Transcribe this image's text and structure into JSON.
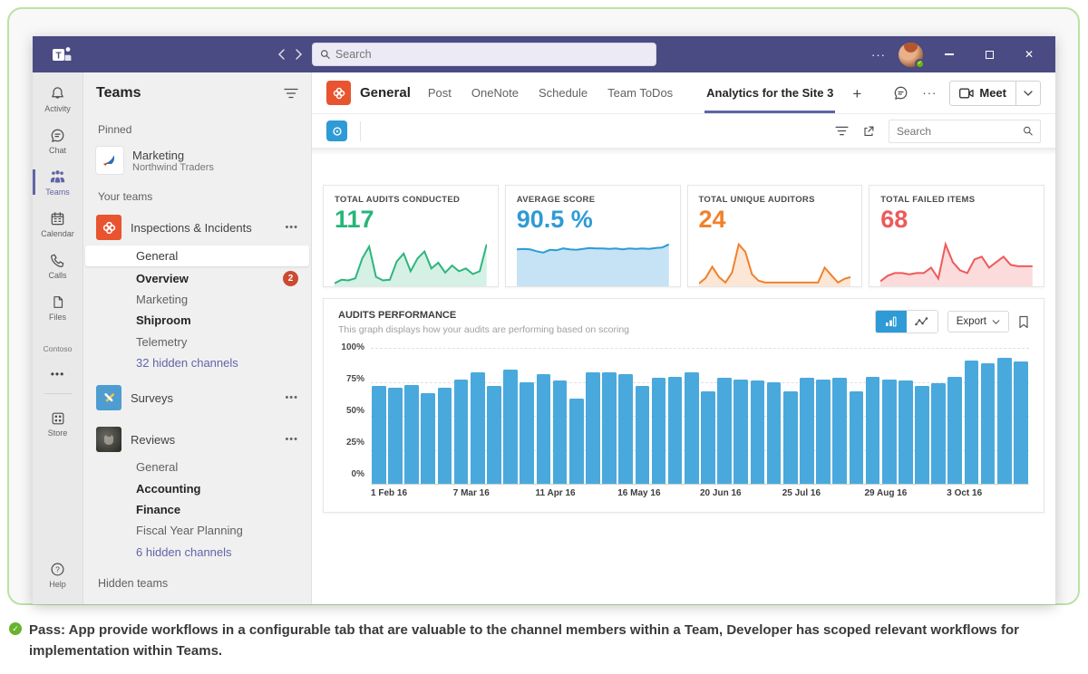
{
  "titlebar": {
    "search_placeholder": "Search",
    "more": "···"
  },
  "rail": {
    "items": [
      {
        "label": "Activity"
      },
      {
        "label": "Chat"
      },
      {
        "label": "Teams",
        "active": true
      },
      {
        "label": "Calendar"
      },
      {
        "label": "Calls"
      },
      {
        "label": "Files"
      }
    ],
    "org": "Contoso",
    "more": "•••",
    "store_label": "Store",
    "help_label": "Help"
  },
  "sidebar": {
    "title": "Teams",
    "more": "•••",
    "pinned_header": "Pinned",
    "pinned": [
      {
        "name": "Marketing",
        "org": "Northwind Traders"
      }
    ],
    "your_teams_header": "Your teams",
    "teams": [
      {
        "name": "Inspections & Incidents",
        "channels": [
          {
            "name": "General",
            "selected": true
          },
          {
            "name": "Overview",
            "bold": true,
            "badge": "2"
          },
          {
            "name": "Marketing"
          },
          {
            "name": "Shiproom",
            "bold": true
          },
          {
            "name": "Telemetry"
          },
          {
            "name": "32 hidden channels",
            "link": true
          }
        ]
      },
      {
        "name": "Surveys",
        "channels": []
      },
      {
        "name": "Reviews",
        "channels": [
          {
            "name": "General"
          },
          {
            "name": "Accounting",
            "bold": true
          },
          {
            "name": "Finance",
            "bold": true
          },
          {
            "name": "Fiscal Year Planning"
          },
          {
            "name": "6 hidden channels",
            "link": true
          }
        ]
      }
    ],
    "hidden_teams_label": "Hidden teams"
  },
  "header": {
    "channel": "General",
    "tabs": [
      "Post",
      "OneNote",
      "Schedule",
      "Team ToDos"
    ],
    "active_tab": "Analytics for the Site 3",
    "add_tab": "+",
    "more": "···",
    "meet_label": "Meet"
  },
  "toolbar": {
    "search_placeholder": "Search"
  },
  "stats": [
    {
      "label": "TOTAL AUDITS CONDUCTED",
      "value": "117",
      "color": "#27b578"
    },
    {
      "label": "AVERAGE SCORE",
      "value": "90.5 %",
      "color": "#2e9bd6"
    },
    {
      "label": "TOTAL UNIQUE AUDITORS",
      "value": "24",
      "color": "#f0812d"
    },
    {
      "label": "TOTAL FAILED ITEMS",
      "value": "68",
      "color": "#ee5a5a"
    }
  ],
  "performance": {
    "title": "AUDITS PERFORMANCE",
    "subtitle": "This graph displays how your audits are performing based on scoring",
    "export_label": "Export"
  },
  "chart_data": [
    {
      "type": "area",
      "name": "total-audits-sparkline",
      "values": [
        3,
        8,
        7,
        10,
        38,
        55,
        12,
        7,
        8,
        34,
        45,
        20,
        38,
        48,
        24,
        32,
        18,
        28,
        20,
        24,
        16,
        20,
        58
      ],
      "color": "#2eb57d",
      "fill": "rgba(46,181,125,0.20)"
    },
    {
      "type": "area",
      "name": "average-score-sparkline",
      "values": [
        79,
        80,
        79,
        75,
        72,
        78,
        77,
        81,
        79,
        78,
        80,
        82,
        81,
        81,
        80,
        81,
        79,
        81,
        80,
        81,
        80,
        82,
        83,
        90
      ],
      "color": "#2e9bd6",
      "fill": "rgba(46,155,214,0.28)"
    },
    {
      "type": "area",
      "name": "total-unique-auditors-sparkline",
      "values": [
        2,
        8,
        20,
        9,
        3,
        14,
        44,
        36,
        12,
        5,
        3,
        3,
        3,
        3,
        3,
        3,
        3,
        3,
        3,
        19,
        11,
        3,
        7,
        9
      ],
      "color": "#f0812d",
      "fill": "rgba(240,129,45,0.20)"
    },
    {
      "type": "area",
      "name": "total-failed-items-sparkline",
      "values": [
        3,
        7,
        9,
        9,
        8,
        9,
        9,
        13,
        5,
        30,
        17,
        11,
        9,
        19,
        21,
        13,
        17,
        21,
        15,
        14,
        14,
        14
      ],
      "color": "#ee5a5a",
      "fill": "rgba(238,90,90,0.22)"
    },
    {
      "type": "bar",
      "name": "audits-performance-chart",
      "title": "AUDITS PERFORMANCE",
      "subtitle": "This graph displays how your audits are performing based on scoring",
      "bar_color": "#4aa9dc",
      "ylim": [
        0,
        100
      ],
      "yticks": [
        "100%",
        "75%",
        "50%",
        "25%",
        "0%"
      ],
      "grid": true,
      "x": [
        "1 Feb 16",
        "7 Mar 16",
        "11 Apr 16",
        "16 May 16",
        "20 Jun 16",
        "25 Jul 16",
        "29 Aug 16",
        "3 Oct 16"
      ],
      "label_positions": [
        0,
        5,
        10,
        15,
        20,
        25,
        30,
        35
      ],
      "values": [
        72,
        71,
        73,
        67,
        71,
        77,
        82,
        72,
        84,
        75,
        81,
        76,
        63,
        82,
        82,
        81,
        72,
        78,
        79,
        82,
        68,
        78,
        77,
        76,
        75,
        68,
        78,
        77,
        78,
        68,
        79,
        77,
        76,
        72,
        74,
        79,
        91,
        89,
        93,
        90
      ]
    }
  ],
  "footer": {
    "text": "Pass: App provide workflows in a configurable tab that are valuable to the channel members within a Team, Developer has scoped relevant workflows for implementation within Teams."
  }
}
